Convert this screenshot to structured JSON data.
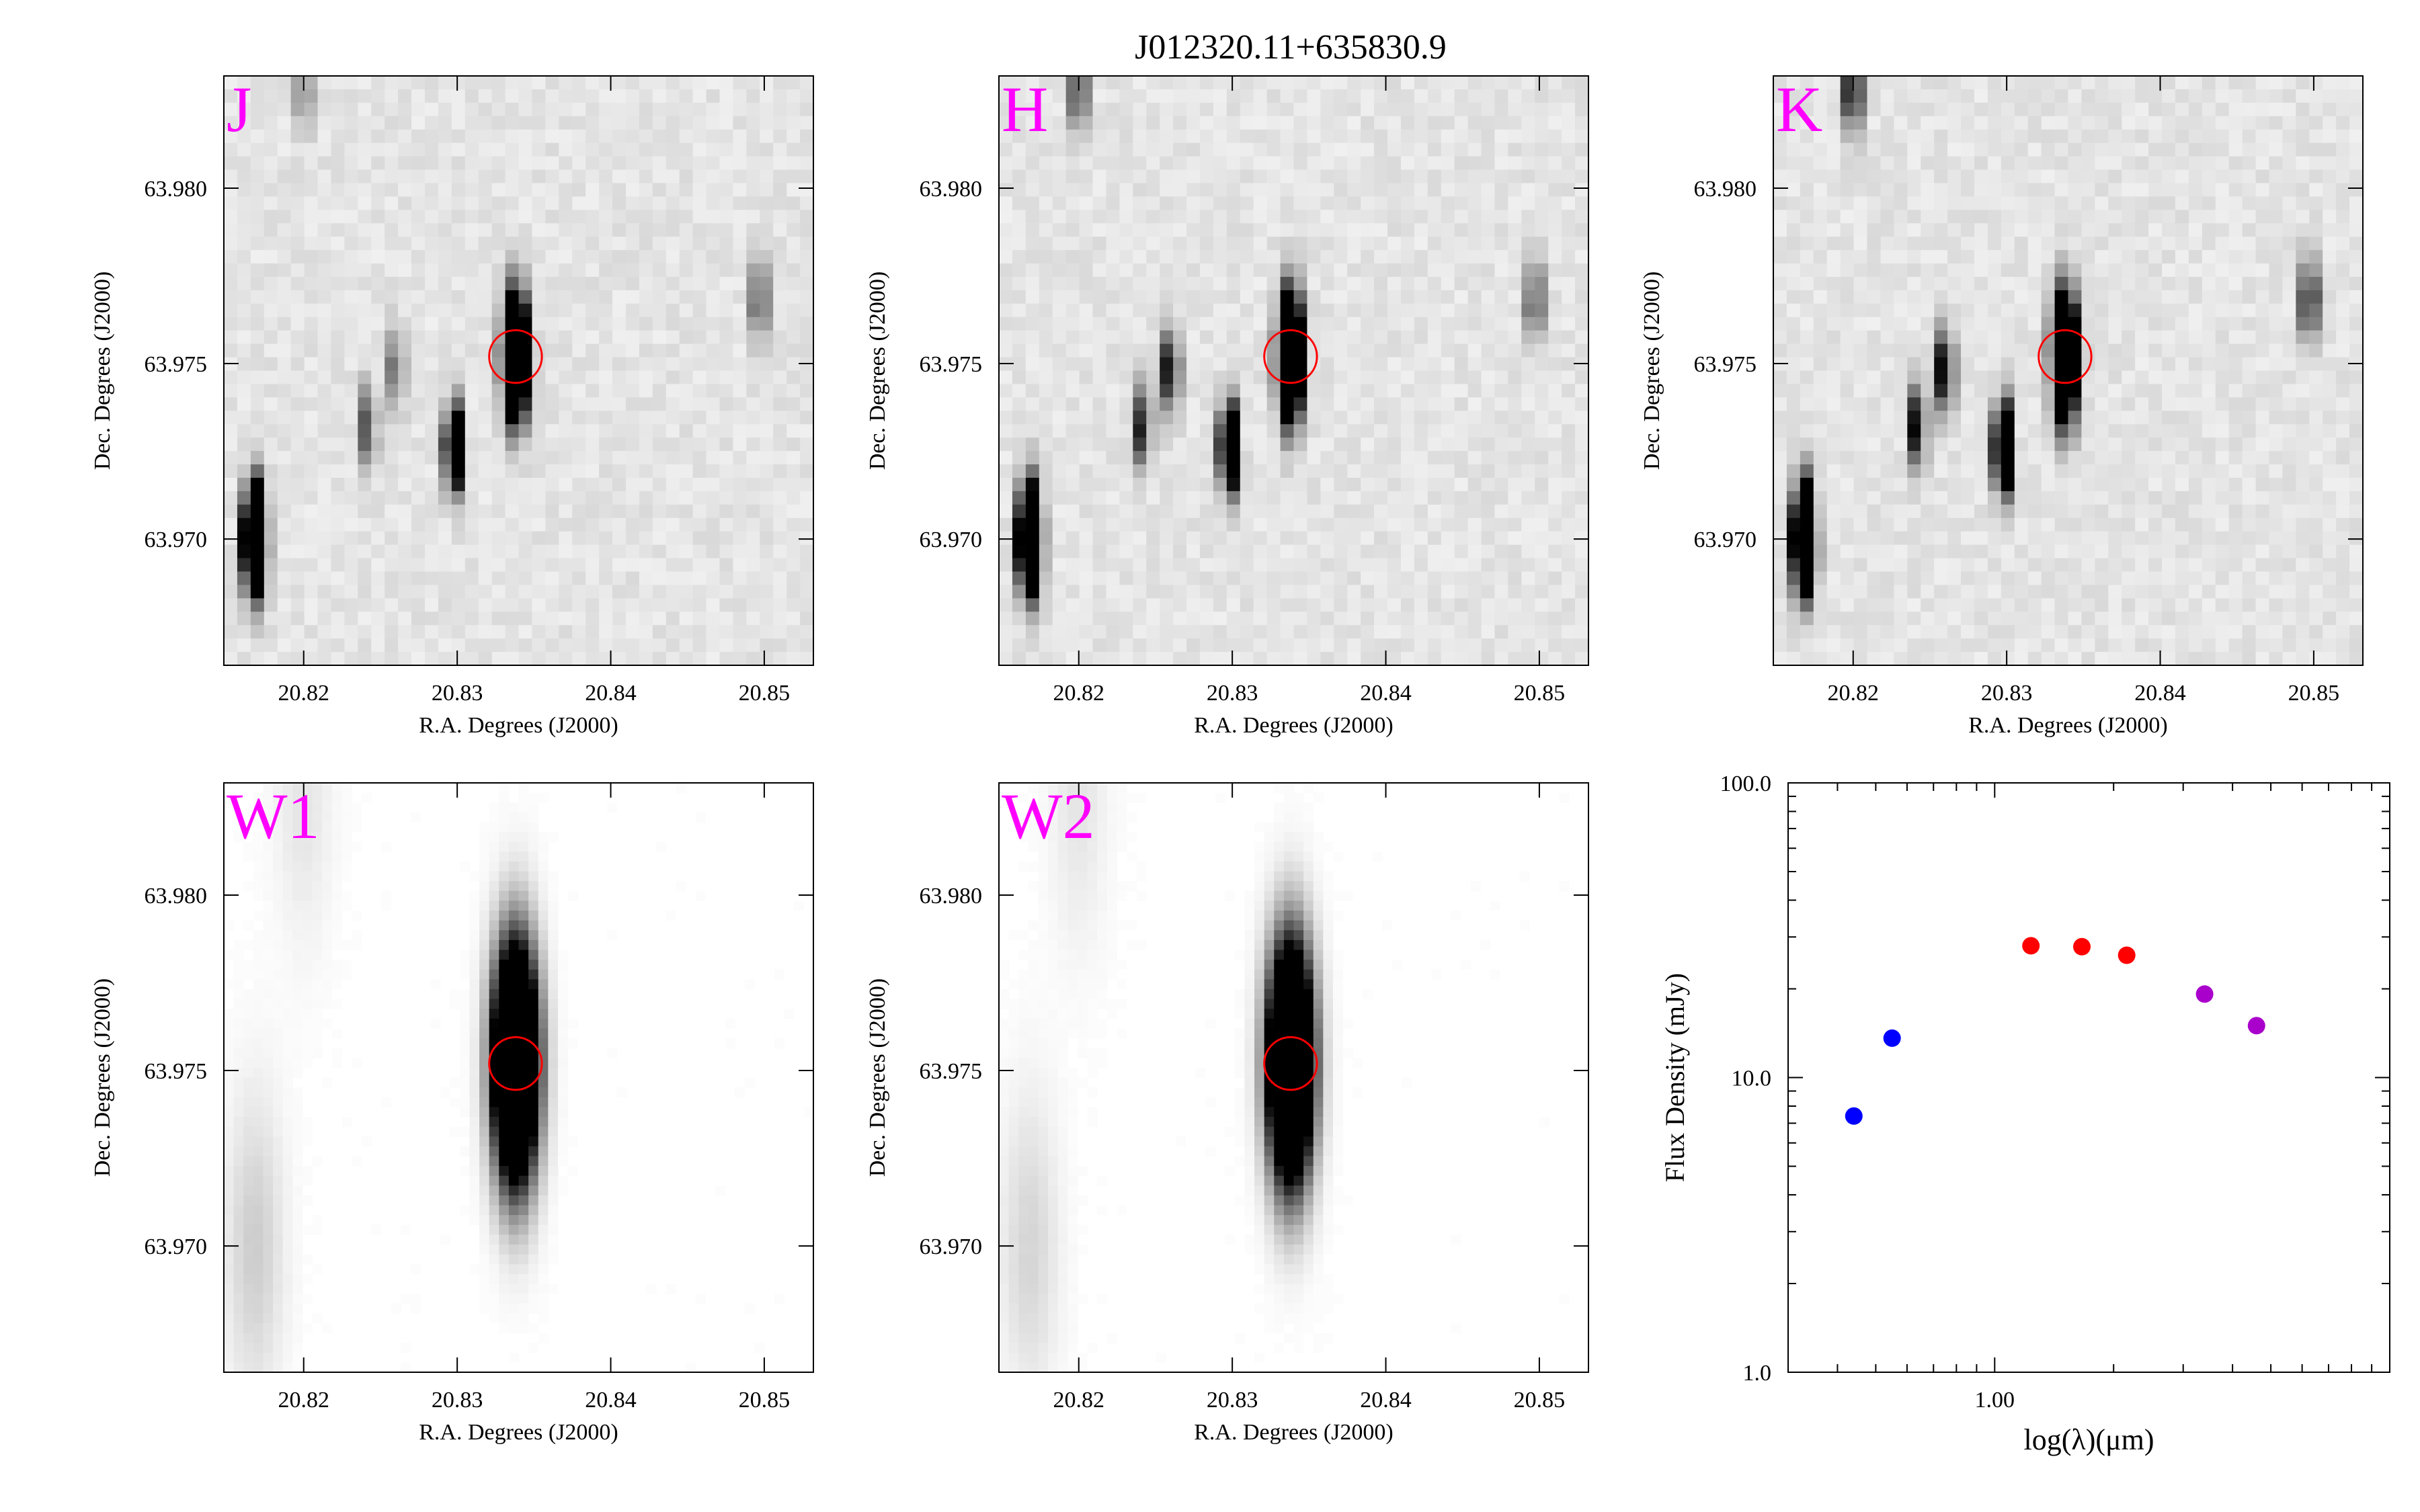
{
  "title": "J012320.11+635830.9",
  "cutouts": [
    {
      "band": "J",
      "xlabel": "R.A. Degrees (J2000)",
      "ylabel": "Dec. Degrees (J2000)",
      "style": "2mass",
      "sources": [
        {
          "ra": 20.8338,
          "dec": 63.9752,
          "flux": 1.0,
          "sigma": 0.00115
        },
        {
          "ra": 20.8168,
          "dec": 63.97,
          "flux": 1.0,
          "sigma": 0.001
        },
        {
          "ra": 20.8298,
          "dec": 63.9726,
          "flux": 0.75,
          "sigma": 0.0008
        },
        {
          "ra": 20.8497,
          "dec": 63.9768,
          "flux": 0.25,
          "sigma": 0.0008
        },
        {
          "ra": 20.826,
          "dec": 63.9748,
          "flux": 0.18,
          "sigma": 0.0008
        },
        {
          "ra": 20.8242,
          "dec": 63.9732,
          "flux": 0.22,
          "sigma": 0.0008
        },
        {
          "ra": 20.82,
          "dec": 63.9828,
          "flux": 0.15,
          "sigma": 0.0008
        }
      ]
    },
    {
      "band": "H",
      "xlabel": "R.A. Degrees (J2000)",
      "ylabel": "Dec. Degrees (J2000)",
      "style": "2mass",
      "sources": [
        {
          "ra": 20.8338,
          "dec": 63.9752,
          "flux": 1.0,
          "sigma": 0.00115
        },
        {
          "ra": 20.8168,
          "dec": 63.97,
          "flux": 1.0,
          "sigma": 0.001
        },
        {
          "ra": 20.8298,
          "dec": 63.9726,
          "flux": 0.85,
          "sigma": 0.0008
        },
        {
          "ra": 20.8497,
          "dec": 63.9768,
          "flux": 0.25,
          "sigma": 0.0008
        },
        {
          "ra": 20.826,
          "dec": 63.9748,
          "flux": 0.35,
          "sigma": 0.0008
        },
        {
          "ra": 20.8242,
          "dec": 63.9732,
          "flux": 0.3,
          "sigma": 0.0008
        },
        {
          "ra": 20.82,
          "dec": 63.9828,
          "flux": 0.3,
          "sigma": 0.0008
        }
      ]
    },
    {
      "band": "K",
      "xlabel": "R.A. Degrees (J2000)",
      "ylabel": "Dec. Degrees (J2000)",
      "style": "2mass",
      "sources": [
        {
          "ra": 20.8338,
          "dec": 63.9752,
          "flux": 1.0,
          "sigma": 0.00115
        },
        {
          "ra": 20.8168,
          "dec": 63.97,
          "flux": 1.0,
          "sigma": 0.001
        },
        {
          "ra": 20.8298,
          "dec": 63.9726,
          "flux": 0.9,
          "sigma": 0.0008
        },
        {
          "ra": 20.8497,
          "dec": 63.9768,
          "flux": 0.35,
          "sigma": 0.0008
        },
        {
          "ra": 20.826,
          "dec": 63.9748,
          "flux": 0.4,
          "sigma": 0.0008
        },
        {
          "ra": 20.8242,
          "dec": 63.9732,
          "flux": 0.35,
          "sigma": 0.0008
        },
        {
          "ra": 20.82,
          "dec": 63.9828,
          "flux": 0.4,
          "sigma": 0.0008
        }
      ]
    },
    {
      "band": "W1",
      "xlabel": "R.A. Degrees (J2000)",
      "ylabel": "Dec. Degrees (J2000)",
      "style": "wise",
      "sources": [
        {
          "ra": 20.8338,
          "dec": 63.9752,
          "flux": 1.0,
          "sigma": 0.0022
        },
        {
          "ra": 20.8168,
          "dec": 63.97,
          "flux": 0.06,
          "sigma": 0.003
        },
        {
          "ra": 20.82,
          "dec": 63.9828,
          "flux": 0.03,
          "sigma": 0.003
        }
      ]
    },
    {
      "band": "W2",
      "xlabel": "R.A. Degrees (J2000)",
      "ylabel": "Dec. Degrees (J2000)",
      "style": "wise",
      "sources": [
        {
          "ra": 20.8338,
          "dec": 63.9752,
          "flux": 1.0,
          "sigma": 0.0022
        },
        {
          "ra": 20.8168,
          "dec": 63.97,
          "flux": 0.05,
          "sigma": 0.003
        },
        {
          "ra": 20.82,
          "dec": 63.9828,
          "flux": 0.03,
          "sigma": 0.003
        }
      ]
    }
  ],
  "cutout_axes": {
    "xlim": [
      20.8148,
      20.8532
    ],
    "ylim": [
      63.9664,
      63.9832
    ],
    "xticks": [
      20.82,
      20.83,
      20.84,
      20.85
    ],
    "xtick_labels": [
      "20.82",
      "20.83",
      "20.84",
      "20.85"
    ],
    "yticks": [
      63.97,
      63.975,
      63.98
    ],
    "ytick_labels": [
      "63.970",
      "63.975",
      "63.980"
    ],
    "aperture": {
      "ra": 20.8338,
      "dec": 63.9752,
      "radius_deg": 0.00075,
      "color": "#ff0000"
    },
    "band_label_color": "#ff00ff"
  },
  "chart_data": {
    "type": "scatter",
    "title": "",
    "xlabel": "log(λ)(μm)",
    "ylabel": "Flux Density (mJy)",
    "xscale": "log",
    "yscale": "log",
    "xlim": [
      0.3,
      10.0
    ],
    "ylim": [
      1.0,
      100.0
    ],
    "ytick_labels": [
      "1.0",
      "10.0",
      "100.0"
    ],
    "xtick_labels": [
      "1.00"
    ],
    "grid": false,
    "series": [
      {
        "color": "#0000ff",
        "x": [
          0.44,
          0.55
        ],
        "y": [
          7.4,
          13.6
        ]
      },
      {
        "color": "#ff0000",
        "x": [
          1.235,
          1.662,
          2.159
        ],
        "y": [
          28.0,
          27.8,
          26.0
        ]
      },
      {
        "color": "#aa00cc",
        "x": [
          3.4,
          4.6
        ],
        "y": [
          19.2,
          15.0
        ]
      }
    ]
  }
}
